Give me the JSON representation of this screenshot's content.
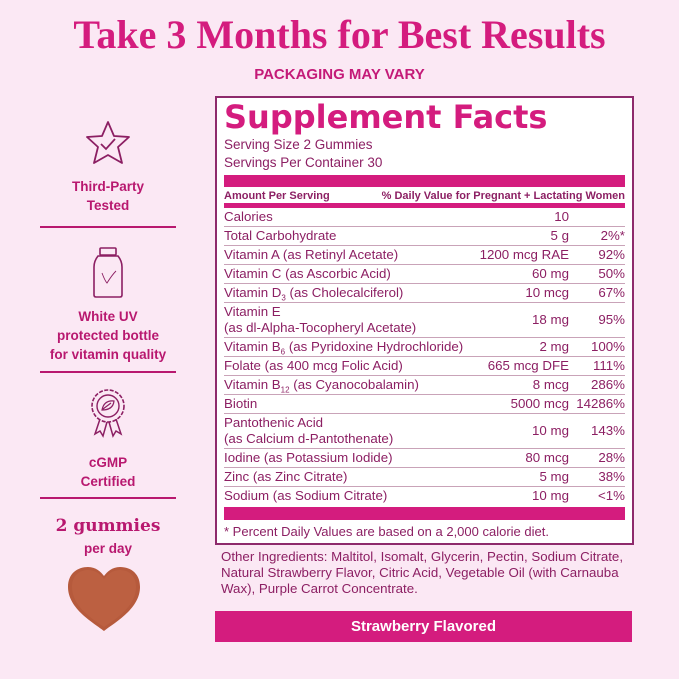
{
  "header": {
    "title": "Take 3 Months for Best Results",
    "subtitle": "PACKAGING MAY VARY"
  },
  "features": [
    {
      "icon": "star-check-icon",
      "line1": "Third-Party",
      "line2": "Tested"
    },
    {
      "icon": "bottle-icon",
      "line1": "White UV",
      "line2": "protected bottle",
      "line3": "for vitamin quality"
    },
    {
      "icon": "award-ribbon-icon",
      "line1": "cGMP",
      "line2": "Certified"
    }
  ],
  "dosage": {
    "count": "2 gummies",
    "per": "per day",
    "image": "heart-gummy"
  },
  "facts": {
    "title": "Supplement Facts",
    "serving_size": "Serving Size 2 Gummies",
    "servings_per_container": "Servings Per Container 30",
    "col_amount": "Amount Per Serving",
    "col_dv": "% Daily Value for Pregnant + Lactating Women",
    "rows": [
      {
        "name": "Calories",
        "amount": "10",
        "dv": ""
      },
      {
        "name": "Total Carbohydrate",
        "amount": "5 g",
        "dv": "2%*"
      },
      {
        "name": "Vitamin A (as Retinyl Acetate)",
        "amount": "1200 mcg RAE",
        "dv": "92%"
      },
      {
        "name": "Vitamin C (as Ascorbic Acid)",
        "amount": "60 mg",
        "dv": "50%"
      },
      {
        "name": "Vitamin D",
        "sub": "3",
        "rest": " (as Cholecalciferol)",
        "amount": "10 mcg",
        "dv": "67%"
      },
      {
        "name": "Vitamin E",
        "line2": "(as dl-Alpha-Tocopheryl Acetate)",
        "amount": "18 mg",
        "dv": "95%"
      },
      {
        "name": "Vitamin B",
        "sub": "6",
        "rest": " (as Pyridoxine Hydrochloride)",
        "amount": "2 mg",
        "dv": "100%"
      },
      {
        "name": "Folate (as 400 mcg Folic Acid)",
        "amount": "665 mcg DFE",
        "dv": "111%"
      },
      {
        "name": "Vitamin B",
        "sub": "12",
        "rest": " (as Cyanocobalamin)",
        "amount": "8 mcg",
        "dv": "286%"
      },
      {
        "name": "Biotin",
        "amount": "5000 mcg",
        "dv": "14286%"
      },
      {
        "name": "Pantothenic Acid",
        "line2": "(as Calcium d-Pantothenate)",
        "amount": "10 mg",
        "dv": "143%"
      },
      {
        "name": "Iodine (as Potassium Iodide)",
        "amount": "80 mcg",
        "dv": "28%"
      },
      {
        "name": "Zinc (as Zinc Citrate)",
        "amount": "5 mg",
        "dv": "38%"
      },
      {
        "name": "Sodium (as Sodium Citrate)",
        "amount": "10 mg",
        "dv": "<1%"
      }
    ],
    "footnote": "* Percent Daily Values are based on a 2,000 calorie diet."
  },
  "other_ingredients": "Other Ingredients: Maltitol, Isomalt, Glycerin, Pectin, Sodium Citrate, Natural Strawberry Flavor, Citric Acid, Vegetable Oil (with Carnauba Wax), Purple Carrot Concentrate.",
  "flavor": "Strawberry Flavored",
  "colors": {
    "accent": "#d41c7e",
    "text": "#8c1f63",
    "background": "#fbe8f4"
  }
}
